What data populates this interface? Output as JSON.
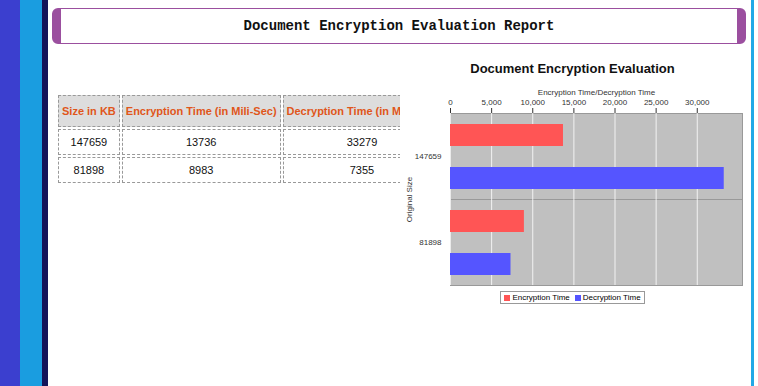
{
  "header": {
    "title": "Document Encryption Evaluation Report"
  },
  "table": {
    "columns": [
      "Size in KB",
      "Encryption Time (in Mili-Sec)",
      "Decryption Time (in Mili-Sec)"
    ],
    "rows": [
      [
        147659,
        13736,
        33279
      ],
      [
        81898,
        8983,
        7355
      ]
    ]
  },
  "chart_data": {
    "type": "bar",
    "orientation": "horizontal",
    "title": "Document Encryption Evaluation",
    "xlabel": "Encryption Time/Decryption Time",
    "ylabel": "Original Size",
    "categories": [
      "147659",
      "81898"
    ],
    "series": [
      {
        "name": "Encryption Time",
        "color": "#ff5555",
        "values": [
          13736,
          8983
        ]
      },
      {
        "name": "Decryption Time",
        "color": "#5555ff",
        "values": [
          33279,
          7355
        ]
      }
    ],
    "xlim": [
      0,
      35500
    ],
    "xticks": [
      0,
      {
        "value": 5000,
        "label": "5,000"
      },
      {
        "value": 10000,
        "label": "10,000"
      },
      {
        "value": 15000,
        "label": "15,000"
      },
      {
        "value": 20000,
        "label": "20,000"
      },
      {
        "value": 25000,
        "label": "25,000"
      },
      {
        "value": 30000,
        "label": "30,000"
      }
    ],
    "grid": true,
    "legend": "bottom"
  }
}
